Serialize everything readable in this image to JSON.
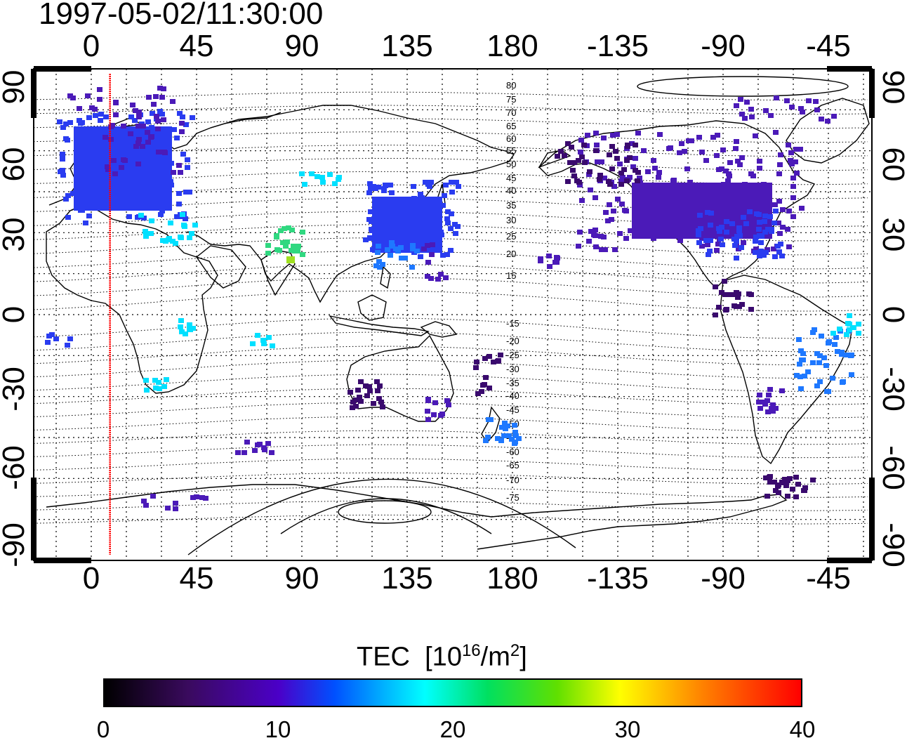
{
  "title": "1997-05-02/11:30:00",
  "map": {
    "x_ticks": [
      "0",
      "45",
      "90",
      "135",
      "180",
      "-135",
      "-90",
      "-45"
    ],
    "y_ticks": [
      "90",
      "60",
      "30",
      "0",
      "-30",
      "-60",
      "-90"
    ],
    "contour_labels_north": [
      "80",
      "75",
      "70",
      "65",
      "60",
      "55",
      "50",
      "45",
      "40",
      "35",
      "30",
      "25",
      "20",
      "15"
    ],
    "contour_labels_south": [
      "-15",
      "-20",
      "-25",
      "-30",
      "-35",
      "-40",
      "-45",
      "-50",
      "-55",
      "-60",
      "-65",
      "-70",
      "-75"
    ],
    "terminator_longitude": 8,
    "terminator_color": "#ff0000"
  },
  "colorbar": {
    "label": "TEC",
    "unit_base": "[10",
    "unit_exp1": "16",
    "unit_mid": "/m",
    "unit_exp2": "2",
    "unit_end": "]",
    "ticks": [
      "0",
      "10",
      "20",
      "30",
      "40"
    ],
    "range": [
      0,
      40
    ]
  },
  "colors": {
    "very_low": "#3a0a6e",
    "low": "#4b1ab8",
    "mid_low": "#2a3cf0",
    "mid": "#1e78ff",
    "cyan": "#00e0ff",
    "green": "#30d880",
    "yellow_green": "#a0e020"
  },
  "tec_regions": [
    {
      "name": "Europe",
      "level": "mid_low"
    },
    {
      "name": "East Asia / Japan",
      "level": "mid_low"
    },
    {
      "name": "North America",
      "level": "low"
    },
    {
      "name": "South America",
      "level": "mid"
    },
    {
      "name": "Australia / New Zealand",
      "level": "very_low"
    },
    {
      "name": "Antarctica",
      "level": "very_low"
    },
    {
      "name": "India",
      "level": "green"
    }
  ]
}
